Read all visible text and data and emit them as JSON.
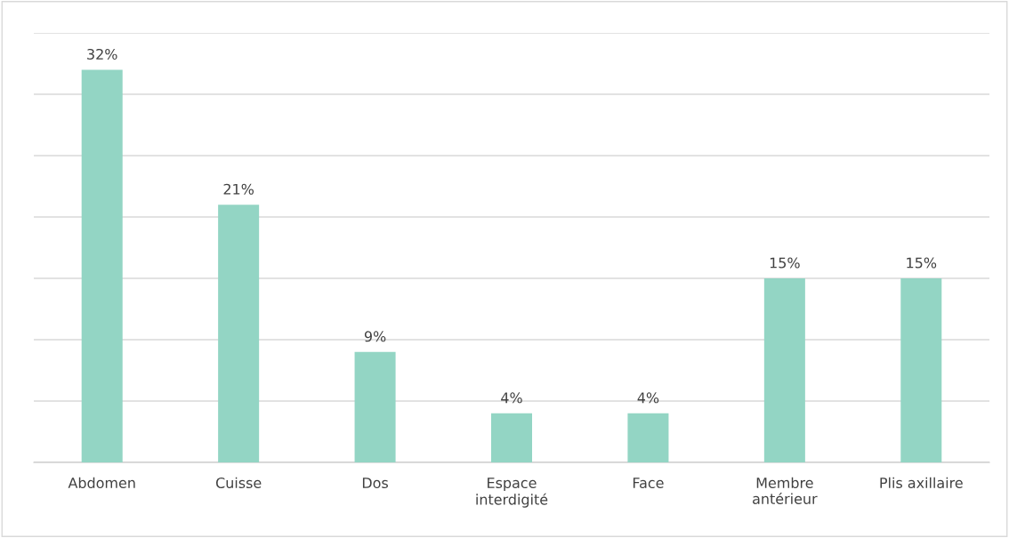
{
  "chart_data": {
    "type": "bar",
    "categories": [
      "Abdomen",
      "Cuisse",
      "Dos",
      "Espace\ninterdigité",
      "Face",
      "Membre\nantérieur",
      "Plis axillaire"
    ],
    "values": [
      32,
      21,
      9,
      4,
      4,
      15,
      15
    ],
    "value_labels": [
      "32%",
      "21%",
      "9%",
      "4%",
      "4%",
      "15%",
      "15%"
    ],
    "color": "#93d5c4",
    "ylim": [
      0,
      35
    ],
    "yticks": [
      {
        "value": 0,
        "label": null
      },
      {
        "value": 5,
        "label": null
      },
      {
        "value": 10,
        "label": null
      },
      {
        "value": 15,
        "label": null
      },
      {
        "value": 20,
        "label": null
      },
      {
        "value": 25,
        "label": null
      },
      {
        "value": 30,
        "label": null
      },
      {
        "value": 35,
        "label": null
      }
    ],
    "grid": "y",
    "tick_labels": "x"
  }
}
